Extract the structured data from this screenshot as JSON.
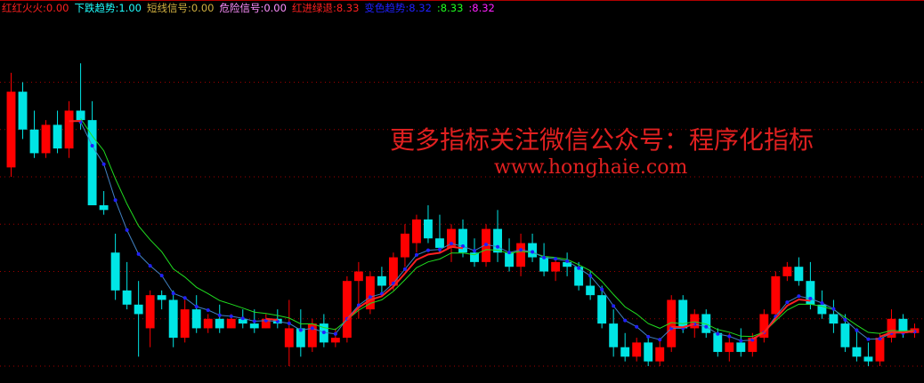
{
  "legend": [
    {
      "label": "红红火火",
      "value": "0.00",
      "color": "#ff2020"
    },
    {
      "label": "下跌趋势",
      "value": "1.00",
      "color": "#20ffff"
    },
    {
      "label": "短线信号",
      "value": "0.00",
      "color": "#d0b040"
    },
    {
      "label": "危险信号",
      "value": "0.00",
      "color": "#ff90ff"
    },
    {
      "label": "红进绿退",
      "value": "8.33",
      "color": "#ff2020"
    },
    {
      "label": "变色趋势",
      "value": "8.32",
      "color": "#2020ff"
    },
    {
      "label": "",
      "value": "8.33",
      "color": "#20ff20"
    },
    {
      "label": "",
      "value": "8.32",
      "color": "#ff20ff"
    }
  ],
  "watermark": {
    "line1": "更多指标关注微信公众号：程序化指标",
    "line2": "www.honghaie.com"
  },
  "colors": {
    "up": "#ff0000",
    "down": "#00e5e5",
    "grid": "#a00000",
    "ma_red": "#ff2020",
    "ma_blue": "#2020ff",
    "ma_green": "#20dd20"
  },
  "chart_data": {
    "type": "candlestick",
    "grid": true,
    "gridlines": [
      11.0,
      10.5,
      10.0,
      9.5,
      9.0,
      8.5,
      8.0
    ],
    "ylim": [
      7.85,
      11.7
    ],
    "ohlc": [
      [
        10.1,
        11.1,
        10.0,
        10.9
      ],
      [
        10.9,
        11.0,
        10.4,
        10.5
      ],
      [
        10.5,
        10.7,
        10.2,
        10.25
      ],
      [
        10.25,
        10.6,
        10.2,
        10.55
      ],
      [
        10.55,
        10.7,
        10.25,
        10.3
      ],
      [
        10.3,
        10.8,
        10.2,
        10.7
      ],
      [
        10.7,
        11.2,
        10.5,
        10.6
      ],
      [
        10.6,
        10.8,
        9.7,
        9.7
      ],
      [
        9.7,
        9.85,
        9.6,
        9.65
      ],
      [
        9.2,
        9.4,
        8.7,
        8.8
      ],
      [
        8.8,
        9.1,
        8.6,
        8.65
      ],
      [
        8.65,
        8.9,
        8.1,
        8.55
      ],
      [
        8.4,
        8.8,
        8.2,
        8.75
      ],
      [
        8.75,
        8.8,
        8.6,
        8.7
      ],
      [
        8.7,
        8.8,
        8.2,
        8.3
      ],
      [
        8.3,
        8.7,
        8.25,
        8.6
      ],
      [
        8.6,
        8.75,
        8.35,
        8.4
      ],
      [
        8.4,
        8.55,
        8.35,
        8.5
      ],
      [
        8.5,
        8.65,
        8.35,
        8.4
      ],
      [
        8.4,
        8.55,
        8.4,
        8.5
      ],
      [
        8.5,
        8.6,
        8.4,
        8.45
      ],
      [
        8.45,
        8.6,
        8.35,
        8.4
      ],
      [
        8.4,
        8.55,
        8.4,
        8.5
      ],
      [
        8.5,
        8.6,
        8.4,
        8.45
      ],
      [
        8.2,
        8.7,
        8.0,
        8.4
      ],
      [
        8.4,
        8.6,
        8.1,
        8.2
      ],
      [
        8.2,
        8.5,
        8.15,
        8.45
      ],
      [
        8.45,
        8.55,
        8.2,
        8.25
      ],
      [
        8.25,
        8.4,
        8.2,
        8.3
      ],
      [
        8.3,
        8.95,
        8.25,
        8.9
      ],
      [
        8.9,
        9.1,
        8.5,
        9.0
      ],
      [
        8.6,
        9.0,
        8.55,
        8.95
      ],
      [
        8.95,
        9.05,
        8.75,
        8.85
      ],
      [
        8.85,
        9.2,
        8.8,
        9.15
      ],
      [
        9.15,
        9.5,
        9.05,
        9.4
      ],
      [
        9.3,
        9.6,
        9.2,
        9.55
      ],
      [
        9.55,
        9.7,
        9.3,
        9.35
      ],
      [
        9.35,
        9.6,
        9.2,
        9.25
      ],
      [
        9.25,
        9.5,
        9.1,
        9.45
      ],
      [
        9.45,
        9.55,
        9.15,
        9.2
      ],
      [
        9.2,
        9.35,
        9.05,
        9.1
      ],
      [
        9.1,
        9.5,
        9.05,
        9.45
      ],
      [
        9.45,
        9.65,
        9.1,
        9.2
      ],
      [
        9.2,
        9.35,
        9.0,
        9.05
      ],
      [
        9.05,
        9.4,
        8.95,
        9.3
      ],
      [
        9.3,
        9.4,
        9.1,
        9.15
      ],
      [
        9.15,
        9.3,
        8.95,
        9.0
      ],
      [
        9.0,
        9.15,
        8.9,
        9.1
      ],
      [
        9.1,
        9.2,
        8.95,
        9.05
      ],
      [
        9.05,
        9.1,
        8.8,
        8.85
      ],
      [
        8.85,
        9.0,
        8.7,
        8.75
      ],
      [
        8.75,
        8.85,
        8.4,
        8.45
      ],
      [
        8.45,
        8.6,
        8.1,
        8.2
      ],
      [
        8.2,
        8.35,
        8.05,
        8.1
      ],
      [
        8.1,
        8.3,
        8.05,
        8.25
      ],
      [
        8.25,
        8.3,
        8.0,
        8.05
      ],
      [
        8.05,
        8.3,
        8.0,
        8.2
      ],
      [
        8.2,
        8.75,
        8.15,
        8.7
      ],
      [
        8.7,
        8.75,
        8.35,
        8.4
      ],
      [
        8.4,
        8.6,
        8.3,
        8.55
      ],
      [
        8.55,
        8.6,
        8.3,
        8.35
      ],
      [
        8.35,
        8.4,
        8.1,
        8.15
      ],
      [
        8.15,
        8.35,
        8.05,
        8.25
      ],
      [
        8.25,
        8.4,
        8.1,
        8.15
      ],
      [
        8.15,
        8.35,
        8.1,
        8.3
      ],
      [
        8.3,
        8.6,
        8.25,
        8.55
      ],
      [
        8.55,
        9.0,
        8.5,
        8.95
      ],
      [
        8.95,
        9.1,
        8.9,
        9.05
      ],
      [
        9.05,
        9.15,
        8.85,
        8.9
      ],
      [
        8.9,
        9.1,
        8.6,
        8.65
      ],
      [
        8.65,
        8.8,
        8.5,
        8.55
      ],
      [
        8.55,
        8.7,
        8.35,
        8.45
      ],
      [
        8.45,
        8.55,
        8.15,
        8.2
      ],
      [
        8.2,
        8.4,
        8.05,
        8.1
      ],
      [
        8.1,
        8.25,
        8.0,
        8.05
      ],
      [
        8.05,
        8.35,
        8.0,
        8.3
      ],
      [
        8.3,
        8.6,
        8.25,
        8.5
      ],
      [
        8.5,
        8.55,
        8.3,
        8.35
      ],
      [
        8.35,
        8.45,
        8.3,
        8.4
      ]
    ]
  }
}
